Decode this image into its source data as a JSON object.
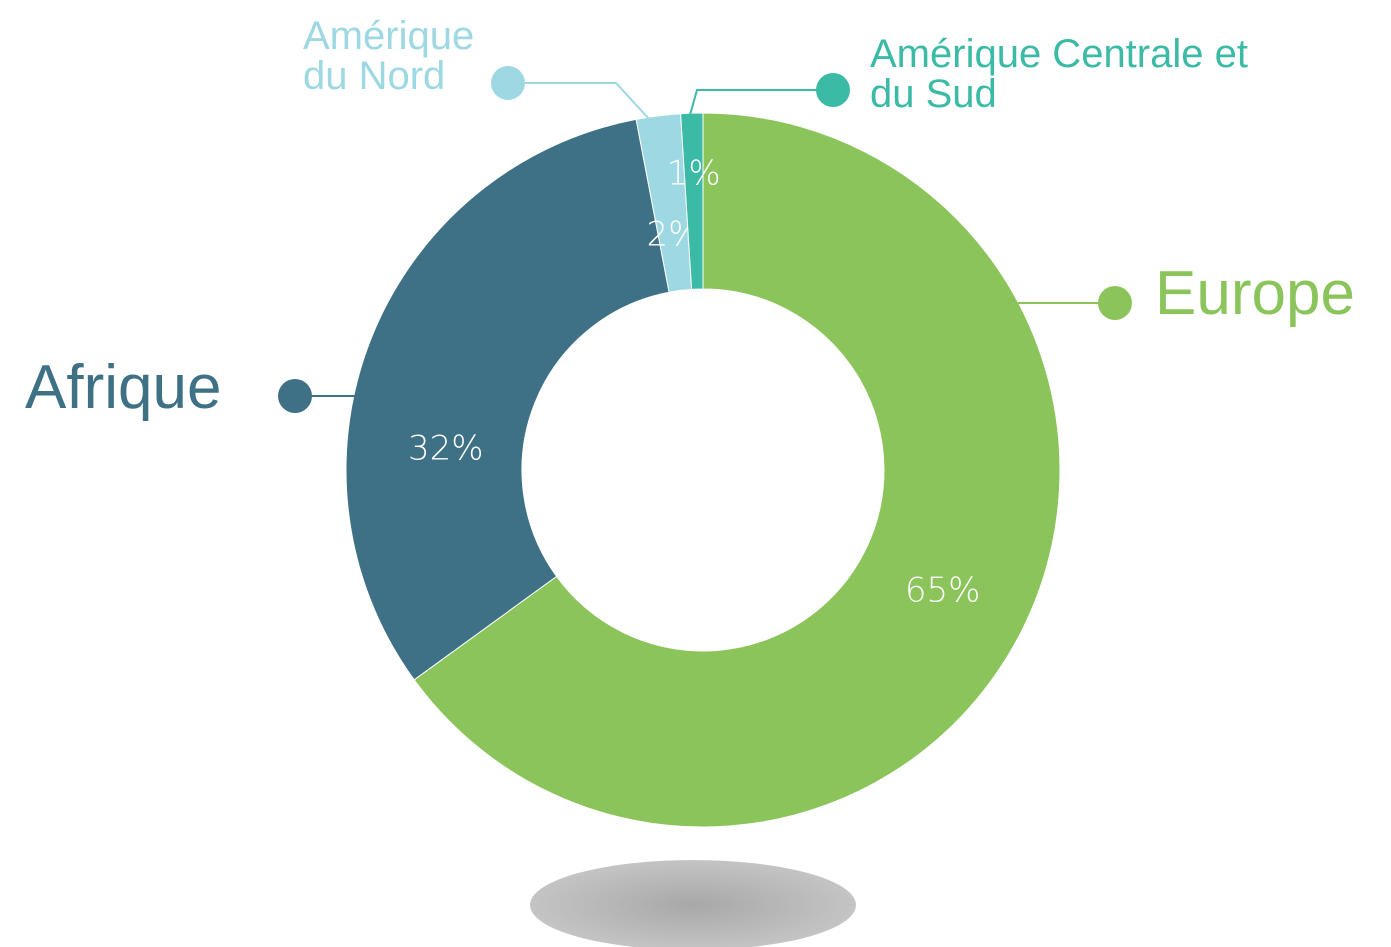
{
  "chart_data": {
    "type": "donut",
    "categories": [
      "Europe",
      "Afrique",
      "Amérique du Nord",
      "Amérique Centrale et du Sud"
    ],
    "values": [
      65,
      32,
      2,
      1
    ],
    "value_labels": [
      "65%",
      "32%",
      "2%",
      "1%"
    ],
    "colors": [
      "#8bc45a",
      "#3e7186",
      "#9dd8e3",
      "#3bbaa5"
    ]
  }
}
